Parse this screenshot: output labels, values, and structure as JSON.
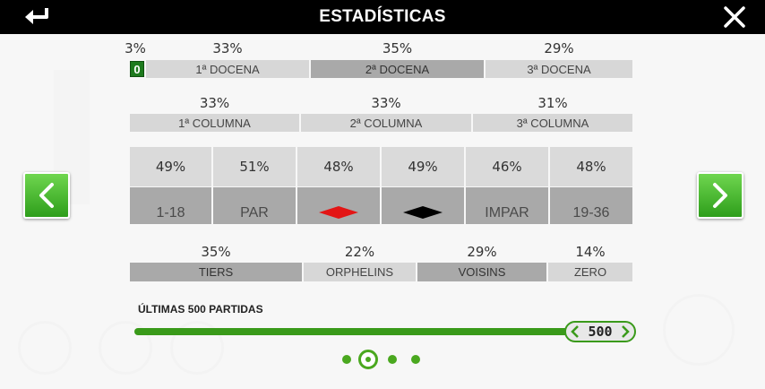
{
  "header": {
    "title": "ESTADÍSTICAS",
    "back_icon": "back-arrow-icon",
    "close_icon": "close-icon"
  },
  "zero_row": {
    "zero_pct": "3%",
    "zero_label": "0",
    "dozens": [
      {
        "pct": "33%",
        "label": "1ª DOCENA"
      },
      {
        "pct": "35%",
        "label": "2ª DOCENA"
      },
      {
        "pct": "29%",
        "label": "3ª DOCENA"
      }
    ]
  },
  "columns": [
    {
      "pct": "33%",
      "label": "1ª COLUMNA"
    },
    {
      "pct": "33%",
      "label": "2ª COLUMNA"
    },
    {
      "pct": "31%",
      "label": "3ª COLUMNA"
    }
  ],
  "even_bets": [
    {
      "pct": "49%",
      "label": "1-18"
    },
    {
      "pct": "51%",
      "label": "PAR"
    },
    {
      "pct": "48%",
      "label": "",
      "icon": "red-diamond-icon"
    },
    {
      "pct": "49%",
      "label": "",
      "icon": "black-diamond-icon"
    },
    {
      "pct": "46%",
      "label": "IMPAR"
    },
    {
      "pct": "48%",
      "label": "19-36"
    }
  ],
  "sectors": [
    {
      "pct": "35%",
      "label": "TIERS"
    },
    {
      "pct": "22%",
      "label": "ORPHELINS"
    },
    {
      "pct": "29%",
      "label": "VOISINS"
    },
    {
      "pct": "14%",
      "label": "ZERO"
    }
  ],
  "slider": {
    "label": "ÚLTIMAS 500 PARTIDAS",
    "value": "500"
  },
  "pagination": {
    "pages": 4,
    "active": 2
  },
  "colors": {
    "accent_green": "#3a9a1a",
    "red": "#e31515",
    "black": "#000000"
  }
}
